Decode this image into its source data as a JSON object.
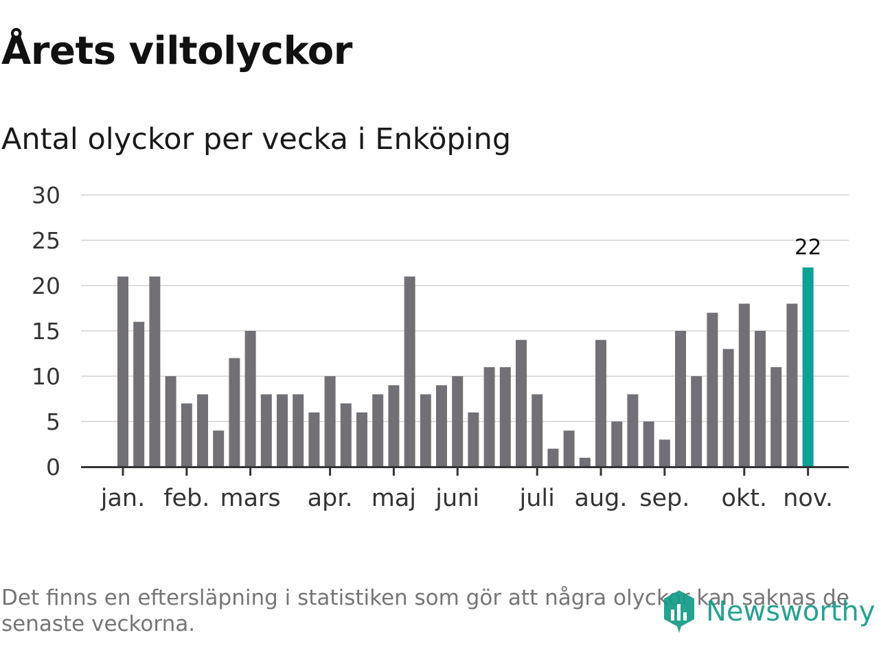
{
  "header": {
    "title": "Årets viltolyckor",
    "subtitle": "Antal olyckor per vecka i Enköping"
  },
  "chart_data": {
    "type": "bar",
    "title": "Årets viltolyckor",
    "subtitle": "Antal olyckor per vecka i Enköping",
    "xlabel": "",
    "ylabel": "",
    "ylim": [
      0,
      30
    ],
    "yticks": [
      "0",
      "5",
      "10",
      "15",
      "20",
      "25",
      "30"
    ],
    "grid": true,
    "values": [
      21,
      16,
      21,
      10,
      7,
      8,
      4,
      12,
      15,
      8,
      8,
      8,
      6,
      10,
      7,
      6,
      8,
      9,
      21,
      8,
      9,
      10,
      6,
      11,
      11,
      14,
      8,
      2,
      4,
      1,
      14,
      5,
      8,
      5,
      3,
      15,
      10,
      17,
      13,
      18,
      15,
      11,
      18,
      22
    ],
    "highlight_index": 43,
    "highlight_label": "22",
    "month_ticks": [
      {
        "label": "jan.",
        "week_index": 0
      },
      {
        "label": "feb.",
        "week_index": 4
      },
      {
        "label": "mars",
        "week_index": 8
      },
      {
        "label": "apr.",
        "week_index": 13
      },
      {
        "label": "maj",
        "week_index": 17
      },
      {
        "label": "juni",
        "week_index": 21
      },
      {
        "label": "juli",
        "week_index": 26
      },
      {
        "label": "aug.",
        "week_index": 30
      },
      {
        "label": "sep.",
        "week_index": 34
      },
      {
        "label": "okt.",
        "week_index": 39
      },
      {
        "label": "nov.",
        "week_index": 43
      }
    ],
    "colors": {
      "bar": "#727076",
      "highlight": "#0da293",
      "grid": "#dddddd",
      "axis": "#333333"
    }
  },
  "footer": {
    "note": "Det finns en eftersläpning i statistiken som gör att några olyckor kan saknas de senaste veckorna.",
    "brand": "Newsworthy",
    "brand_color": "#169b88"
  }
}
